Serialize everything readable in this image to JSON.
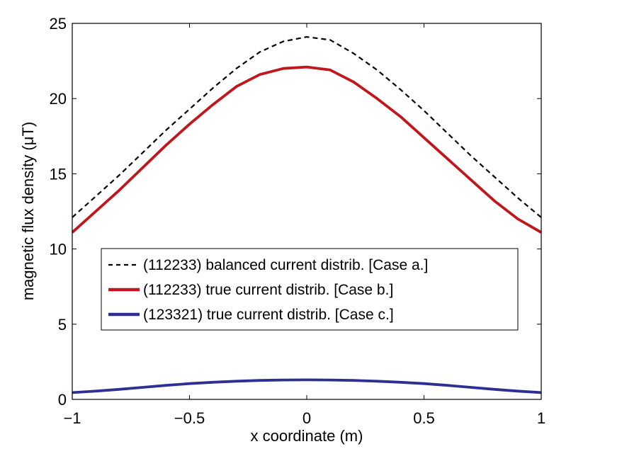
{
  "chart_data": {
    "type": "line",
    "xlabel": "x coordinate (m)",
    "ylabel": "magnetic flux density (μT)",
    "xlim": [
      -1,
      1
    ],
    "ylim": [
      0,
      25
    ],
    "xticks": [
      -1,
      -0.5,
      0,
      0.5,
      1
    ],
    "xtick_labels": [
      "−1",
      "−0.5",
      "0",
      "0.5",
      "1"
    ],
    "yticks": [
      0,
      5,
      10,
      15,
      20,
      25
    ],
    "ytick_labels": [
      "0",
      "5",
      "10",
      "15",
      "20",
      "25"
    ],
    "grid": false,
    "legend_position": "center-left",
    "x": [
      -1.0,
      -0.9,
      -0.8,
      -0.7,
      -0.6,
      -0.5,
      -0.4,
      -0.3,
      -0.2,
      -0.1,
      0.0,
      0.1,
      0.2,
      0.3,
      0.4,
      0.5,
      0.6,
      0.7,
      0.8,
      0.9,
      1.0
    ],
    "series": [
      {
        "name": "(112233) balanced current distrib. [Case a.]",
        "color": "#000000",
        "style": "dashed",
        "values": [
          12.1,
          13.5,
          14.9,
          16.4,
          17.9,
          19.3,
          20.7,
          22.0,
          23.1,
          23.8,
          24.1,
          23.9,
          23.0,
          21.9,
          20.6,
          19.2,
          17.7,
          16.2,
          14.8,
          13.4,
          12.1
        ]
      },
      {
        "name": "(112233) true current distrib. [Case b.]",
        "color": "#c0171c",
        "style": "solid",
        "values": [
          11.1,
          12.5,
          13.9,
          15.4,
          16.9,
          18.3,
          19.6,
          20.8,
          21.6,
          22.0,
          22.1,
          21.9,
          21.1,
          20.0,
          18.8,
          17.4,
          16.0,
          14.6,
          13.2,
          12.0,
          11.1
        ]
      },
      {
        "name": "(123321) true current distrib. [Case c.]",
        "color": "#2d3092",
        "style": "solid",
        "values": [
          0.45,
          0.55,
          0.67,
          0.8,
          0.93,
          1.05,
          1.14,
          1.21,
          1.26,
          1.29,
          1.3,
          1.29,
          1.26,
          1.21,
          1.14,
          1.05,
          0.93,
          0.8,
          0.67,
          0.55,
          0.45
        ]
      }
    ]
  }
}
